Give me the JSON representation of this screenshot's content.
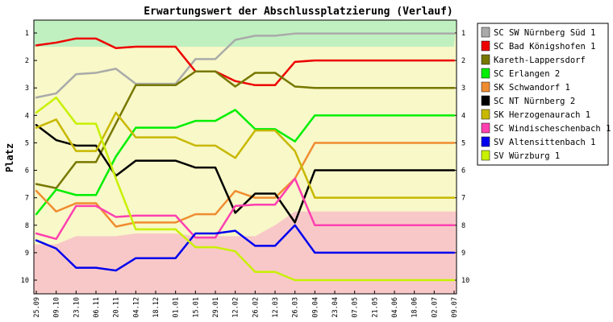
{
  "chart_data": {
    "type": "line",
    "title": "Erwartungswert der Abschlussplatzierung (Verlauf)",
    "ylabel": "Platz",
    "xlabel": "",
    "ylim": [
      1,
      10
    ],
    "y_inverted": true,
    "yticks": [
      "1",
      "2",
      "3",
      "4",
      "5",
      "6",
      "7",
      "8",
      "9",
      "10"
    ],
    "categories": [
      "25.09",
      "09.10",
      "23.10",
      "06.11",
      "20.11",
      "04.12",
      "18.12",
      "01.01",
      "15.01",
      "29.01",
      "12.02",
      "26.02",
      "12.03",
      "26.03",
      "09.04",
      "23.04",
      "07.05",
      "21.05",
      "04.06",
      "18.06",
      "02.07",
      "09.07"
    ],
    "legend_placement": "right",
    "zone_colors": {
      "top": "#c0f0c0",
      "middle": "#f8f8c8",
      "bottom": "#f8c8c8"
    },
    "zone_top_bottom_edge": [
      1.5,
      1.5,
      1.5,
      1.5,
      1.5,
      1.5,
      1.5,
      1.5,
      1.5,
      1.5,
      1.5,
      1.5,
      1.5,
      1.5,
      1.5,
      1.5,
      1.5,
      1.5,
      1.5,
      1.5,
      1.5,
      1.5
    ],
    "zone_bottom_top_edge": [
      8.7,
      8.7,
      8.4,
      8.4,
      8.4,
      8.3,
      8.3,
      8.3,
      8.4,
      8.4,
      8.4,
      8.4,
      8.0,
      7.5,
      7.5,
      7.5,
      7.5,
      7.5,
      7.5,
      7.5,
      7.5,
      7.5
    ],
    "series": [
      {
        "name": "SC SW Nürnberg Süd 1",
        "color": "#aaaaaa",
        "values": [
          3.35,
          3.2,
          2.5,
          2.45,
          2.3,
          2.85,
          2.85,
          2.85,
          1.95,
          1.95,
          1.25,
          1.1,
          1.1,
          1.02,
          1.02,
          1.02,
          1.02,
          1.02,
          1.02,
          1.02,
          1.02,
          1.02
        ]
      },
      {
        "name": "SC Bad Königshofen 1",
        "color": "#ee0000",
        "values": [
          1.45,
          1.35,
          1.2,
          1.2,
          1.55,
          1.5,
          1.5,
          1.5,
          2.4,
          2.4,
          2.75,
          2.9,
          2.9,
          2.05,
          2.0,
          2.0,
          2.0,
          2.0,
          2.0,
          2.0,
          2.0,
          2.0
        ]
      },
      {
        "name": "Kareth-Lappersdorf",
        "color": "#777700",
        "values": [
          6.5,
          6.65,
          5.7,
          5.7,
          4.3,
          2.9,
          2.9,
          2.9,
          2.4,
          2.4,
          2.95,
          2.45,
          2.45,
          2.95,
          3.0,
          3.0,
          3.0,
          3.0,
          3.0,
          3.0,
          3.0,
          3.0
        ]
      },
      {
        "name": "SC Erlangen 2",
        "color": "#00ee00",
        "values": [
          7.6,
          6.7,
          6.9,
          6.9,
          5.5,
          4.45,
          4.45,
          4.45,
          4.2,
          4.2,
          3.8,
          4.5,
          4.5,
          4.95,
          4.0,
          4.0,
          4.0,
          4.0,
          4.0,
          4.0,
          4.0,
          4.0
        ]
      },
      {
        "name": "SK Schwandorf 1",
        "color": "#f08c30",
        "values": [
          6.75,
          7.5,
          7.2,
          7.2,
          8.05,
          7.9,
          7.9,
          7.9,
          7.6,
          7.6,
          6.75,
          7.0,
          7.0,
          6.3,
          5.0,
          5.0,
          5.0,
          5.0,
          5.0,
          5.0,
          5.0,
          5.0
        ]
      },
      {
        "name": "SC NT Nürnberg 2",
        "color": "#000000",
        "values": [
          4.35,
          4.9,
          5.1,
          5.1,
          6.2,
          5.65,
          5.65,
          5.65,
          5.9,
          5.9,
          7.55,
          6.85,
          6.85,
          7.9,
          6.0,
          6.0,
          6.0,
          6.0,
          6.0,
          6.0,
          6.0,
          6.0
        ]
      },
      {
        "name": "SK Herzogenaurach 1",
        "color": "#c8b800",
        "values": [
          4.45,
          4.15,
          5.3,
          5.3,
          3.9,
          4.8,
          4.8,
          4.8,
          5.1,
          5.1,
          5.55,
          4.55,
          4.55,
          5.3,
          7.0,
          7.0,
          7.0,
          7.0,
          7.0,
          7.0,
          7.0,
          7.0
        ]
      },
      {
        "name": "SC Windischeschenbach 1",
        "color": "#ff40b0",
        "values": [
          8.3,
          8.5,
          7.3,
          7.3,
          7.7,
          7.65,
          7.65,
          7.65,
          8.45,
          8.45,
          7.3,
          7.25,
          7.25,
          6.3,
          8.0,
          8.0,
          8.0,
          8.0,
          8.0,
          8.0,
          8.0,
          8.0
        ]
      },
      {
        "name": "SV Altensittenbach 1",
        "color": "#0000ee",
        "values": [
          8.55,
          8.85,
          9.55,
          9.55,
          9.65,
          9.2,
          9.2,
          9.2,
          8.3,
          8.3,
          8.2,
          8.75,
          8.75,
          8.0,
          9.0,
          9.0,
          9.0,
          9.0,
          9.0,
          9.0,
          9.0,
          9.0
        ]
      },
      {
        "name": "SV Würzburg 1",
        "color": "#c8f000",
        "values": [
          3.9,
          3.35,
          4.3,
          4.3,
          6.3,
          8.15,
          8.15,
          8.15,
          8.8,
          8.8,
          8.95,
          9.7,
          9.7,
          10.0,
          10.0,
          10.0,
          10.0,
          10.0,
          10.0,
          10.0,
          10.0,
          10.0
        ]
      }
    ]
  }
}
